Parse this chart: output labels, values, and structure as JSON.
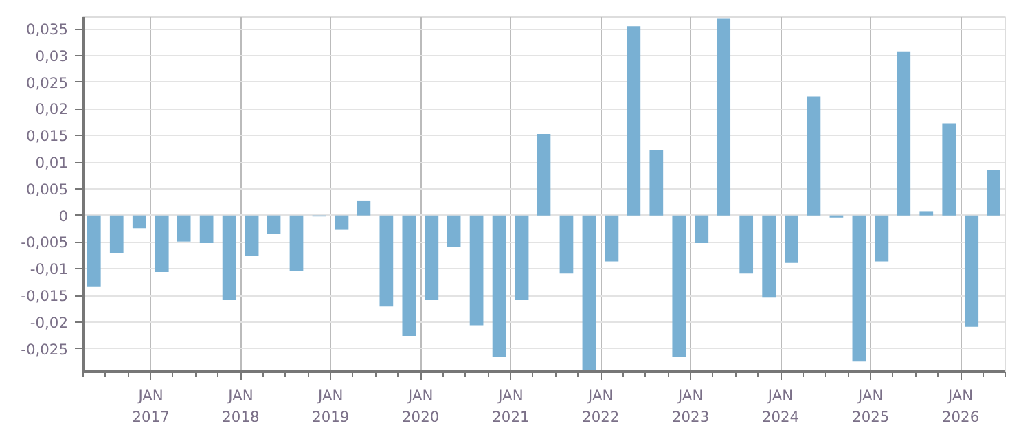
{
  "chart_data": {
    "type": "bar",
    "color": "#79b0d3",
    "x": [
      "2016-05-15",
      "2016-08-15",
      "2016-11-15",
      "2017-02-15",
      "2017-05-15",
      "2017-08-15",
      "2017-11-15",
      "2018-02-15",
      "2018-05-15",
      "2018-08-15",
      "2018-11-15",
      "2019-02-15",
      "2019-05-15",
      "2019-08-15",
      "2019-11-15",
      "2020-02-15",
      "2020-05-15",
      "2020-08-15",
      "2020-11-15",
      "2021-02-15",
      "2021-05-15",
      "2021-08-15",
      "2021-11-15",
      "2022-02-15",
      "2022-05-15",
      "2022-08-15",
      "2022-11-15",
      "2023-02-15",
      "2023-05-15",
      "2023-08-15",
      "2023-11-15",
      "2024-02-15",
      "2024-05-15",
      "2024-08-15",
      "2024-11-15",
      "2025-02-15",
      "2025-05-15",
      "2025-08-15",
      "2025-11-15",
      "2026-02-15",
      "2026-05-15"
    ],
    "values": [
      -0.0134,
      -0.0071,
      -0.0024,
      -0.0106,
      -0.0049,
      -0.0052,
      -0.0159,
      -0.0076,
      -0.0034,
      -0.0104,
      -0.0002,
      -0.0027,
      0.0028,
      -0.0171,
      -0.0226,
      -0.0159,
      -0.0059,
      -0.0206,
      -0.0266,
      -0.0159,
      0.0153,
      -0.0109,
      -0.029,
      -0.0086,
      0.0355,
      0.0123,
      -0.0266,
      -0.0052,
      0.037,
      -0.0109,
      -0.0154,
      -0.0089,
      0.0223,
      -0.0004,
      -0.0274,
      -0.0086,
      0.0308,
      0.0008,
      0.0173,
      -0.0209,
      0.0086
    ],
    "xlim": [
      "2016-04-01",
      "2026-07-01"
    ],
    "xticks": [
      {
        "value": "2017-01",
        "label": "JAN\n2017"
      },
      {
        "value": "2018-01",
        "label": "JAN\n2018"
      },
      {
        "value": "2019-01",
        "label": "JAN\n2019"
      },
      {
        "value": "2020-01",
        "label": "JAN\n2020"
      },
      {
        "value": "2021-01",
        "label": "JAN\n2021"
      },
      {
        "value": "2022-01",
        "label": "JAN\n2022"
      },
      {
        "value": "2023-01",
        "label": "JAN\n2023"
      },
      {
        "value": "2024-01",
        "label": "JAN\n2024"
      },
      {
        "value": "2025-01",
        "label": "JAN\n2025"
      },
      {
        "value": "2026-01",
        "label": "JAN\n2026"
      }
    ],
    "ylim": [
      -0.0293,
      0.0372
    ],
    "yticks": [
      {
        "value": -0.025,
        "label": "-0,025"
      },
      {
        "value": -0.02,
        "label": "-0,02"
      },
      {
        "value": -0.015,
        "label": "-0,015"
      },
      {
        "value": -0.01,
        "label": "-0,01"
      },
      {
        "value": -0.005,
        "label": "-0,005"
      },
      {
        "value": 0,
        "label": "0"
      },
      {
        "value": 0.005,
        "label": "0,005"
      },
      {
        "value": 0.01,
        "label": "0,01"
      },
      {
        "value": 0.015,
        "label": "0,015"
      },
      {
        "value": 0.02,
        "label": "0,02"
      },
      {
        "value": 0.025,
        "label": "0,025"
      },
      {
        "value": 0.03,
        "label": "0,03"
      },
      {
        "value": 0.035,
        "label": "0,035"
      }
    ],
    "grid": true
  }
}
